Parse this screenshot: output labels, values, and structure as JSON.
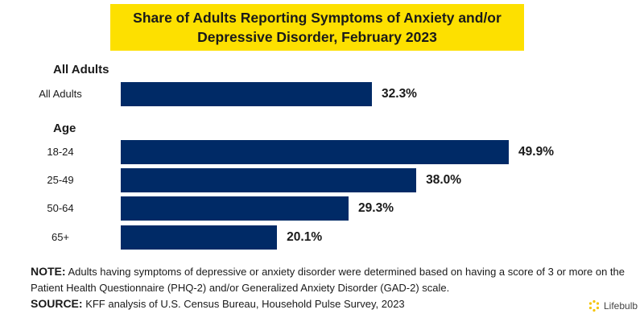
{
  "title": "Share of Adults Reporting Symptoms of Anxiety and/or Depressive Disorder, February 2023",
  "colors": {
    "bar": "#002a66",
    "title_bg": "#fde000",
    "logo": "#f5c400"
  },
  "chart_data": {
    "type": "bar",
    "orientation": "horizontal",
    "title": "Share of Adults Reporting Symptoms of Anxiety and/or Depressive Disorder, February 2023",
    "groups": [
      {
        "name": "All Adults",
        "items": [
          {
            "label": "All Adults",
            "value": 32.3,
            "display": "32.3%"
          }
        ]
      },
      {
        "name": "Age",
        "items": [
          {
            "label": "18-24",
            "value": 49.9,
            "display": "49.9%"
          },
          {
            "label": "25-49",
            "value": 38.0,
            "display": "38.0%"
          },
          {
            "label": "50-64",
            "value": 29.3,
            "display": "29.3%"
          },
          {
            "label": "65+",
            "value": 20.1,
            "display": "20.1%"
          }
        ]
      }
    ],
    "grid": false,
    "legend": "none"
  },
  "note": {
    "label": "NOTE:",
    "text": "Adults having symptoms of depressive or anxiety disorder were determined based on having a score of 3 or more on the Patient Health Questionnaire (PHQ-2) and/or Generalized Anxiety Disorder (GAD-2) scale."
  },
  "source": {
    "label": "SOURCE:",
    "text": "KFF analysis of U.S. Census Bureau, Household Pulse Survey, 2023"
  },
  "logo": {
    "text": "Lifebulb",
    "icon": "lifebulb-logo-icon"
  }
}
